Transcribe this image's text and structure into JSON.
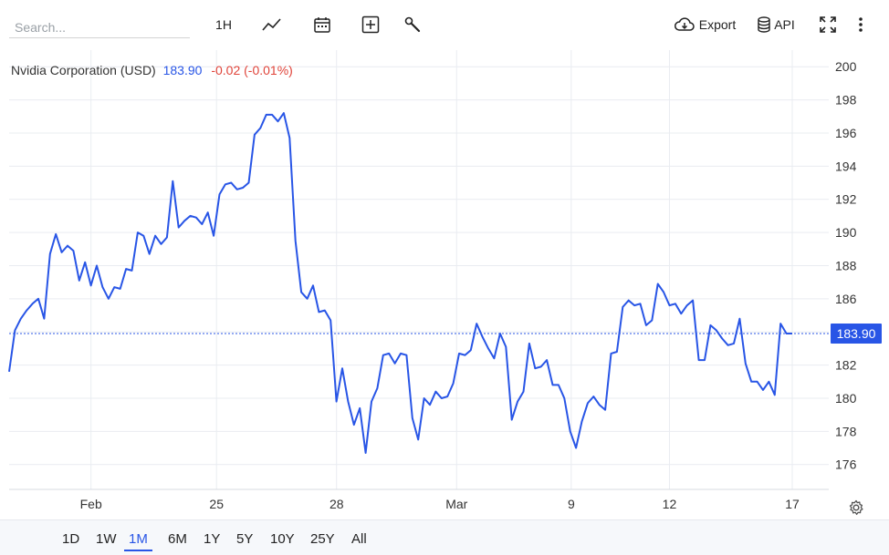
{
  "toolbar": {
    "search_placeholder": "Search...",
    "interval_label": "1H",
    "export_label": "Export",
    "api_label": "API",
    "icons": [
      "line-chart-icon",
      "calendar-icon",
      "add-indicator-icon",
      "wrench-icon",
      "cloud-download-icon",
      "database-icon",
      "fullscreen-icon",
      "more-vert-icon"
    ]
  },
  "legend": {
    "name": "Nvidia Corporation (USD)",
    "price": "183.90",
    "change": "-0.02 (-0.01%)"
  },
  "last_price_label": "183.90",
  "colors": {
    "line": "#2855e6",
    "price": "#2855e6",
    "change": "#e0443a",
    "badge": "#2855e6",
    "grid": "#e9ecf1"
  },
  "ranges": [
    "1D",
    "1W",
    "1M",
    "6M",
    "1Y",
    "5Y",
    "10Y",
    "25Y",
    "All"
  ],
  "active_range": "1M",
  "chart_data": {
    "type": "line",
    "title": "Nvidia Corporation (USD)",
    "xlabel": "",
    "ylabel": "",
    "ylim": [
      174.5,
      201
    ],
    "y_ticks": [
      176,
      178,
      180,
      182,
      184,
      186,
      188,
      190,
      192,
      194,
      196,
      198,
      200
    ],
    "x_ticks": [
      "Feb",
      "25",
      "28",
      "Mar",
      "9",
      "12",
      "17"
    ],
    "grid": true,
    "last_value": 183.9,
    "series": [
      {
        "values": [
          181.6,
          184.1,
          184.8,
          185.3,
          185.7,
          186.0,
          184.8,
          188.7,
          189.9,
          188.8,
          189.2,
          188.9,
          187.1,
          188.2,
          186.8,
          188.0,
          186.7,
          186.0,
          186.7,
          186.6,
          187.8,
          187.7,
          190.0,
          189.8,
          188.7,
          189.8,
          189.3,
          189.7,
          193.1,
          190.3,
          190.7,
          191.0,
          190.9,
          190.5,
          191.2,
          189.8,
          192.3,
          192.9,
          193.0,
          192.6,
          192.7,
          193.0,
          195.9,
          196.3,
          197.1,
          197.1,
          196.7,
          197.2,
          195.7,
          189.5,
          186.4,
          186.0,
          186.8,
          185.2,
          185.3,
          184.7,
          179.8,
          181.8,
          179.8,
          178.4,
          179.4,
          176.7,
          179.8,
          180.6,
          182.6,
          182.7,
          182.1,
          182.7,
          182.6,
          178.8,
          177.5,
          180.0,
          179.6,
          180.4,
          180.0,
          180.1,
          180.9,
          182.7,
          182.6,
          182.9,
          184.5,
          183.7,
          183.0,
          182.4,
          183.9,
          183.1,
          178.7,
          179.8,
          180.4,
          183.3,
          181.8,
          181.9,
          182.3,
          180.8,
          180.8,
          180.0,
          178.0,
          177.0,
          178.6,
          179.7,
          180.1,
          179.6,
          179.3,
          182.7,
          182.8,
          185.5,
          185.9,
          185.6,
          185.7,
          184.4,
          184.7,
          186.9,
          186.4,
          185.6,
          185.7,
          185.1,
          185.6,
          185.9,
          182.3,
          182.3,
          184.4,
          184.1,
          183.6,
          183.2,
          183.3,
          184.8,
          182.1,
          181.0,
          181.0,
          180.5,
          181.0,
          180.2,
          184.5,
          183.9,
          183.9
        ]
      }
    ]
  }
}
